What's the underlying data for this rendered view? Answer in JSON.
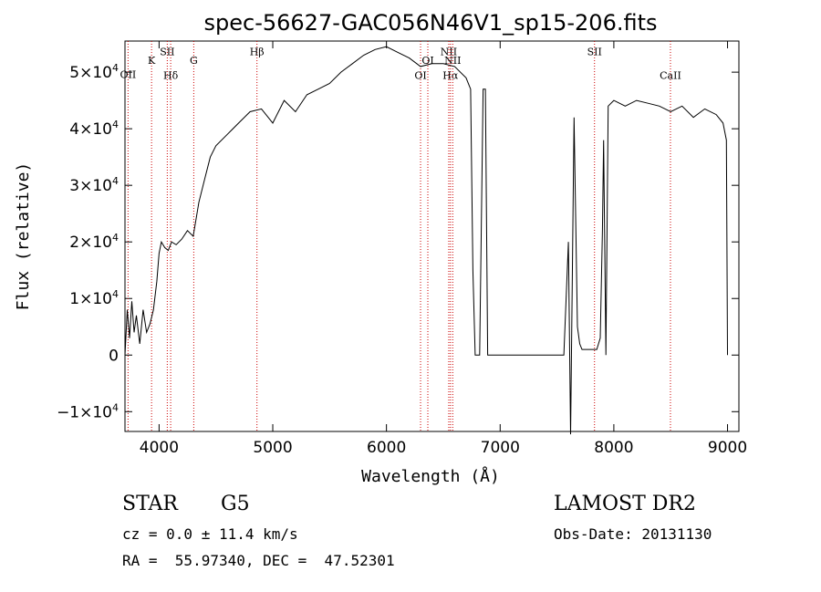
{
  "chart_data": {
    "type": "line",
    "title": "spec-56627-GAC056N46V1_sp15-206.fits",
    "xlabel": "Wavelength (Å)",
    "ylabel": "Flux (relative)",
    "xlim": [
      3700,
      9100
    ],
    "ylim": [
      -13500,
      55500
    ],
    "x_ticks": [
      4000,
      5000,
      6000,
      7000,
      8000,
      9000
    ],
    "y_ticks": [
      {
        "value": -10000,
        "mant": "−1×10",
        "exp": "4"
      },
      {
        "value": 0,
        "mant": "0",
        "exp": ""
      },
      {
        "value": 10000,
        "mant": "1×10",
        "exp": "4"
      },
      {
        "value": 20000,
        "mant": "2×10",
        "exp": "4"
      },
      {
        "value": 30000,
        "mant": "3×10",
        "exp": "4"
      },
      {
        "value": 40000,
        "mant": "4×10",
        "exp": "4"
      },
      {
        "value": 50000,
        "mant": "5×10",
        "exp": "4"
      }
    ],
    "spectral_lines": [
      {
        "label": "OII",
        "wavelength": 3727,
        "label_flux": 49000
      },
      {
        "label": "K",
        "wavelength": 3934,
        "label_flux": 51500
      },
      {
        "label": "SII",
        "wavelength": 4072,
        "label_flux": 53000
      },
      {
        "label": "Hδ",
        "wavelength": 4102,
        "label_flux": 48800
      },
      {
        "label": "G",
        "wavelength": 4305,
        "label_flux": 51500
      },
      {
        "label": "Hβ",
        "wavelength": 4861,
        "label_flux": 53000
      },
      {
        "label": "OI",
        "wavelength": 6300,
        "label_flux": 48800
      },
      {
        "label": "OI",
        "wavelength": 6364,
        "label_flux": 51500
      },
      {
        "label": "NII",
        "wavelength": 6548,
        "label_flux": 53000
      },
      {
        "label": "Hα",
        "wavelength": 6563,
        "label_flux": 48800
      },
      {
        "label": "NII",
        "wavelength": 6583,
        "label_flux": 51500
      },
      {
        "label": "SII",
        "wavelength": 7830,
        "label_flux": 53000
      },
      {
        "label": "CaII",
        "wavelength": 8498,
        "label_flux": 48800
      }
    ],
    "series": [
      {
        "x": [
          3700,
          3720,
          3740,
          3760,
          3780,
          3800,
          3830,
          3860,
          3890,
          3920,
          3950,
          3980,
          4000,
          4020,
          4050,
          4080,
          4110,
          4150,
          4200,
          4250,
          4300,
          4350,
          4400,
          4450,
          4500,
          4600,
          4700,
          4800,
          4900,
          5000,
          5100,
          5200,
          5300,
          5400,
          5500,
          5600,
          5700,
          5800,
          5900,
          6000,
          6100,
          6200,
          6300,
          6400,
          6500,
          6600,
          6700,
          6740,
          6760,
          6780,
          6800,
          6820,
          6850,
          6870,
          6890,
          6910,
          7000,
          7100,
          7190,
          7200,
          7300,
          7400,
          7500,
          7560,
          7600,
          7620,
          7650,
          7680,
          7700,
          7720,
          7800,
          7850,
          7880,
          7900,
          7910,
          7930,
          7950,
          8000,
          8100,
          8200,
          8300,
          8400,
          8500,
          8600,
          8700,
          8800,
          8900,
          8960,
          8990,
          9000
        ],
        "y": [
          0,
          8000,
          3000,
          9500,
          4000,
          7000,
          2000,
          8000,
          4000,
          5500,
          8000,
          13000,
          18000,
          20000,
          19000,
          18500,
          20000,
          19500,
          20500,
          22000,
          21000,
          27000,
          31000,
          35000,
          37000,
          39000,
          41000,
          43000,
          43500,
          41000,
          45000,
          43000,
          46000,
          47000,
          48000,
          50000,
          51500,
          53000,
          54000,
          54500,
          53500,
          52500,
          51000,
          51500,
          51500,
          51000,
          49000,
          47000,
          15000,
          0,
          0,
          0,
          47000,
          47000,
          0,
          0,
          0,
          0,
          0,
          0,
          0,
          0,
          0,
          0,
          20000,
          -14000,
          42000,
          5000,
          2000,
          1000,
          1000,
          1000,
          3000,
          22000,
          38000,
          0,
          44000,
          45000,
          44000,
          45000,
          44500,
          44000,
          43000,
          44000,
          42000,
          43500,
          42500,
          41000,
          38000,
          0
        ]
      }
    ]
  },
  "info": {
    "object_type": "STAR",
    "subclass": "G5",
    "survey": "LAMOST DR2",
    "cz": "cz = 0.0 ± 11.4 km/s",
    "obs_date": "Obs-Date: 20131130",
    "coords": "RA =  55.97340, DEC =  47.52301"
  }
}
